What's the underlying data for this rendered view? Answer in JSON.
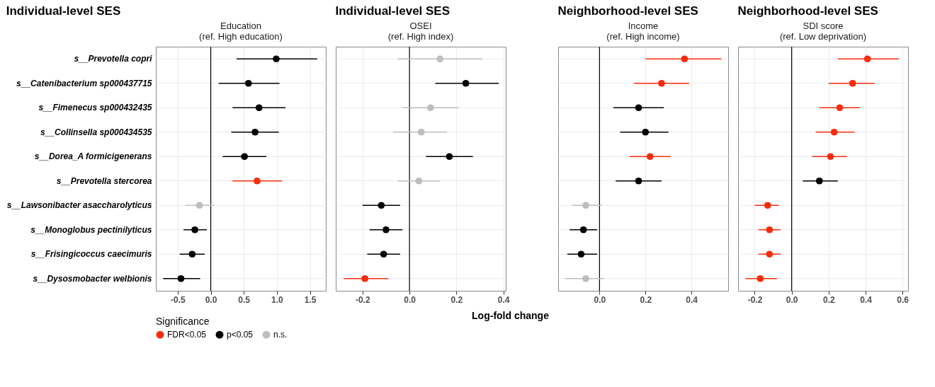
{
  "chart_data": [
    {
      "type": "scatter",
      "orientation": "horizontal",
      "title": "Individual-level SES",
      "subtitle": "Education\n(ref. High education)",
      "legend": "bottom",
      "legend_title": "Significance",
      "marker": "circle",
      "grid": true,
      "categories": [
        "s__Prevotella copri",
        "s__Catenibacterium sp000437715",
        "s__Fimenecus sp000432435",
        "s__Collinsella sp000434535",
        "s__Dorea_A formicigenerans",
        "s__Prevotella stercorea",
        "s__Lawsonibacter asaccharolyticus",
        "s__Monoglobus pectinilyticus",
        "s__Frisingicoccus caecimuris",
        "s__Dysosmobacter welbionis"
      ],
      "xlim": [
        -0.83,
        1.74
      ],
      "xticks": [
        {
          "value": -0.5,
          "label": "-0.5"
        },
        {
          "value": 0,
          "label": "0.0"
        },
        {
          "value": 0.5,
          "label": "0.5"
        },
        {
          "value": 1,
          "label": "1.0"
        },
        {
          "value": 1.5,
          "label": "1.5"
        }
      ],
      "ref_lines": [
        {
          "axis": "x",
          "value": 0
        }
      ],
      "series": [
        {
          "name": "FDR<0.05",
          "color": "#f62d0c",
          "values": [
            null,
            null,
            null,
            null,
            null,
            0.7,
            null,
            null,
            null,
            null
          ],
          "errors": [
            null,
            null,
            null,
            null,
            null,
            [
              0.33,
              1.08
            ],
            null,
            null,
            null,
            null
          ]
        },
        {
          "name": "p<0.05",
          "color": "#000000",
          "values": [
            0.99,
            0.57,
            0.73,
            0.67,
            0.51,
            null,
            null,
            -0.24,
            -0.28,
            -0.45
          ],
          "errors": [
            [
              0.39,
              1.61
            ],
            [
              0.12,
              1.04
            ],
            [
              0.33,
              1.13
            ],
            [
              0.31,
              1.03
            ],
            [
              0.18,
              0.84
            ],
            null,
            null,
            [
              -0.41,
              -0.06
            ],
            [
              -0.47,
              -0.09
            ],
            [
              -0.72,
              -0.16
            ]
          ]
        },
        {
          "name": "n.s.",
          "color": "#bdbdbd",
          "values": [
            null,
            null,
            null,
            null,
            null,
            null,
            -0.17,
            null,
            null,
            null
          ],
          "errors": [
            null,
            null,
            null,
            null,
            null,
            null,
            [
              -0.38,
              0.05
            ],
            null,
            null,
            null
          ]
        }
      ]
    },
    {
      "type": "scatter",
      "orientation": "horizontal",
      "title": "Individual-level SES",
      "subtitle": "OSEI\n(ref. High index)",
      "xlabel": "Log-fold change",
      "marker": "circle",
      "grid": true,
      "tick_labels": "x",
      "categories": [
        null,
        null,
        null,
        null,
        null,
        null,
        null,
        null,
        null,
        null
      ],
      "xlim": [
        -0.314,
        0.41
      ],
      "xticks": [
        {
          "value": -0.2,
          "label": "-0.2"
        },
        {
          "value": 0,
          "label": "0.0"
        },
        {
          "value": 0.2,
          "label": "0.2"
        },
        {
          "value": 0.4,
          "label": "0.4"
        }
      ],
      "ref_lines": [
        {
          "axis": "x",
          "value": 0
        }
      ],
      "series": [
        {
          "color": "#f62d0c",
          "values": [
            null,
            null,
            null,
            null,
            null,
            null,
            null,
            null,
            null,
            -0.19
          ],
          "errors": [
            null,
            null,
            null,
            null,
            null,
            null,
            null,
            null,
            null,
            [
              -0.28,
              -0.09
            ]
          ]
        },
        {
          "color": "#000000",
          "values": [
            null,
            0.24,
            null,
            null,
            0.17,
            null,
            -0.12,
            -0.1,
            -0.11,
            null
          ],
          "errors": [
            null,
            [
              0.11,
              0.38
            ],
            null,
            null,
            [
              0.07,
              0.27
            ],
            null,
            [
              -0.2,
              -0.04
            ],
            [
              -0.17,
              -0.03
            ],
            [
              -0.18,
              -0.04
            ],
            null
          ]
        },
        {
          "color": "#bdbdbd",
          "values": [
            0.13,
            null,
            0.09,
            0.05,
            null,
            0.04,
            null,
            null,
            null,
            null
          ],
          "errors": [
            [
              -0.05,
              0.31
            ],
            null,
            [
              -0.03,
              0.21
            ],
            [
              -0.07,
              0.16
            ],
            null,
            [
              -0.05,
              0.13
            ],
            null,
            null,
            null,
            null
          ]
        }
      ]
    },
    {
      "type": "scatter",
      "orientation": "horizontal",
      "title": "Neighborhood-level SES",
      "subtitle": "Income\n(ref. High income)",
      "marker": "circle",
      "grid": true,
      "tick_labels": "x",
      "categories": [
        null,
        null,
        null,
        null,
        null,
        null,
        null,
        null,
        null,
        null
      ],
      "xlim": [
        -0.18,
        0.56
      ],
      "xticks": [
        {
          "value": 0,
          "label": "0.0"
        },
        {
          "value": 0.2,
          "label": "0.2"
        },
        {
          "value": 0.4,
          "label": "0.4"
        }
      ],
      "ref_lines": [
        {
          "axis": "x",
          "value": 0
        }
      ],
      "series": [
        {
          "color": "#f62d0c",
          "values": [
            0.37,
            0.27,
            null,
            null,
            0.22,
            null,
            null,
            null,
            null,
            null
          ],
          "errors": [
            [
              0.2,
              0.53
            ],
            [
              0.15,
              0.39
            ],
            null,
            null,
            [
              0.13,
              0.31
            ],
            null,
            null,
            null,
            null,
            null
          ]
        },
        {
          "color": "#000000",
          "values": [
            null,
            null,
            0.17,
            0.2,
            null,
            0.17,
            null,
            -0.07,
            -0.08,
            null
          ],
          "errors": [
            null,
            null,
            [
              0.06,
              0.28
            ],
            [
              0.09,
              0.3
            ],
            null,
            [
              0.07,
              0.27
            ],
            null,
            [
              -0.13,
              -0.01
            ],
            [
              -0.14,
              -0.01
            ],
            null
          ]
        },
        {
          "color": "#bdbdbd",
          "values": [
            null,
            null,
            null,
            null,
            null,
            null,
            -0.06,
            null,
            null,
            -0.06
          ],
          "errors": [
            null,
            null,
            null,
            null,
            null,
            null,
            [
              -0.12,
              0.01
            ],
            null,
            null,
            [
              -0.15,
              0.02
            ]
          ]
        }
      ]
    },
    {
      "type": "scatter",
      "orientation": "horizontal",
      "title": "Neighborhood-level SES",
      "subtitle": "SDI score\n(ref. Low deprivation)",
      "marker": "circle",
      "grid": true,
      "tick_labels": "x",
      "categories": [
        null,
        null,
        null,
        null,
        null,
        null,
        null,
        null,
        null,
        null
      ],
      "xlim": [
        -0.29,
        0.63
      ],
      "xticks": [
        {
          "value": -0.2,
          "label": "-0.2"
        },
        {
          "value": 0,
          "label": "0.0"
        },
        {
          "value": 0.2,
          "label": "0.2"
        },
        {
          "value": 0.4,
          "label": "0.4"
        },
        {
          "value": 0.6,
          "label": "0.6"
        }
      ],
      "ref_lines": [
        {
          "axis": "x",
          "value": 0
        }
      ],
      "series": [
        {
          "color": "#f62d0c",
          "values": [
            0.41,
            0.33,
            0.26,
            0.23,
            0.21,
            null,
            -0.13,
            -0.12,
            -0.12,
            -0.17
          ],
          "errors": [
            [
              0.25,
              0.58
            ],
            [
              0.2,
              0.45
            ],
            [
              0.15,
              0.37
            ],
            [
              0.13,
              0.34
            ],
            [
              0.11,
              0.3
            ],
            null,
            [
              -0.2,
              -0.07
            ],
            [
              -0.18,
              -0.06
            ],
            [
              -0.18,
              -0.06
            ],
            [
              -0.25,
              -0.08
            ]
          ]
        },
        {
          "color": "#000000",
          "values": [
            null,
            null,
            null,
            null,
            null,
            0.15,
            null,
            null,
            null,
            null
          ],
          "errors": [
            null,
            null,
            null,
            null,
            null,
            [
              0.06,
              0.25
            ],
            null,
            null,
            null,
            null
          ]
        },
        {
          "color": "#bdbdbd",
          "values": [
            null,
            null,
            null,
            null,
            null,
            null,
            null,
            null,
            null,
            null
          ],
          "errors": [
            null,
            null,
            null,
            null,
            null,
            null,
            null,
            null,
            null,
            null
          ]
        }
      ]
    }
  ]
}
